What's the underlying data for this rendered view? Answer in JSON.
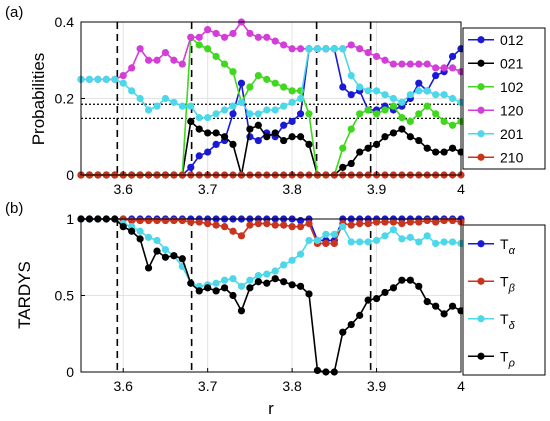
{
  "chart_data": [
    {
      "panel_label": "(a)",
      "type": "line",
      "ylabel": "Probabilities",
      "xlim": [
        3.55,
        4.0
      ],
      "ylim": [
        0,
        0.4
      ],
      "xticks": [
        "3.6",
        "3.7",
        "3.8",
        "3.9",
        "4"
      ],
      "yticks": [
        "0",
        "0.2",
        "0.4"
      ],
      "grid": true,
      "legend_position": "right",
      "dashed_vlines": [
        3.593,
        3.681,
        3.829,
        3.893
      ],
      "dotted_hlines": [
        0.185,
        0.148
      ],
      "x": [
        3.55,
        3.56,
        3.57,
        3.58,
        3.59,
        3.6,
        3.61,
        3.62,
        3.63,
        3.64,
        3.65,
        3.66,
        3.67,
        3.68,
        3.69,
        3.7,
        3.71,
        3.72,
        3.73,
        3.74,
        3.75,
        3.76,
        3.77,
        3.78,
        3.79,
        3.8,
        3.81,
        3.82,
        3.83,
        3.84,
        3.85,
        3.86,
        3.87,
        3.88,
        3.89,
        3.9,
        3.91,
        3.92,
        3.93,
        3.94,
        3.95,
        3.96,
        3.97,
        3.98,
        3.99,
        4.0
      ],
      "series": [
        {
          "name": "012",
          "color": "#1a1ad6",
          "values": [
            0,
            0,
            0,
            0,
            0,
            0,
            0,
            0,
            0,
            0,
            0,
            0,
            0,
            0.02,
            0.05,
            0.06,
            0.08,
            0.09,
            0.16,
            0.24,
            0.1,
            0.09,
            0.11,
            0.1,
            0.13,
            0.14,
            0.16,
            0.33,
            0.33,
            0.33,
            0.33,
            0.23,
            0.21,
            0.22,
            0.17,
            0.17,
            0.18,
            0.17,
            0.18,
            0.2,
            0.24,
            0.22,
            0.26,
            0.27,
            0.31,
            0.33
          ]
        },
        {
          "name": "021",
          "color": "#000000",
          "values": [
            0,
            0,
            0,
            0,
            0,
            0,
            0,
            0,
            0,
            0,
            0,
            0,
            0,
            0.14,
            0.12,
            0.11,
            0.11,
            0.1,
            0.08,
            0.0,
            0.12,
            0.13,
            0.1,
            0.11,
            0.09,
            0.1,
            0.1,
            0.08,
            0.0,
            0.0,
            0.0,
            0.02,
            0.03,
            0.06,
            0.07,
            0.08,
            0.1,
            0.11,
            0.12,
            0.1,
            0.09,
            0.07,
            0.06,
            0.06,
            0.07,
            0.06
          ]
        },
        {
          "name": "102",
          "color": "#3fd81c",
          "values": [
            0,
            0,
            0,
            0,
            0,
            0,
            0,
            0,
            0,
            0,
            0,
            0,
            0,
            0.36,
            0.34,
            0.33,
            0.31,
            0.29,
            0.27,
            0.19,
            0.23,
            0.26,
            0.25,
            0.24,
            0.23,
            0.22,
            0.22,
            0.16,
            0.0,
            0.0,
            0.0,
            0.07,
            0.12,
            0.16,
            0.17,
            0.16,
            0.17,
            0.18,
            0.15,
            0.14,
            0.16,
            0.18,
            0.16,
            0.14,
            0.13,
            0.14
          ]
        },
        {
          "name": "120",
          "color": "#d43ed8",
          "values": [
            0.25,
            0.25,
            0.25,
            0.25,
            0.25,
            0.26,
            0.28,
            0.33,
            0.3,
            0.3,
            0.32,
            0.3,
            0.29,
            0.36,
            0.36,
            0.38,
            0.37,
            0.36,
            0.37,
            0.4,
            0.37,
            0.36,
            0.36,
            0.35,
            0.34,
            0.33,
            0.33,
            0.33,
            0.33,
            0.33,
            0.33,
            0.33,
            0.34,
            0.33,
            0.32,
            0.31,
            0.3,
            0.29,
            0.29,
            0.29,
            0.29,
            0.29,
            0.28,
            0.28,
            0.28,
            0.27
          ]
        },
        {
          "name": "201",
          "color": "#4dd8ea",
          "values": [
            0.25,
            0.25,
            0.25,
            0.25,
            0.25,
            0.24,
            0.22,
            0.2,
            0.17,
            0.18,
            0.2,
            0.19,
            0.18,
            0.18,
            0.15,
            0.15,
            0.16,
            0.17,
            0.18,
            0.19,
            0.16,
            0.16,
            0.17,
            0.17,
            0.18,
            0.19,
            0.2,
            0.33,
            0.33,
            0.33,
            0.33,
            0.33,
            0.26,
            0.23,
            0.22,
            0.22,
            0.21,
            0.2,
            0.19,
            0.21,
            0.22,
            0.22,
            0.21,
            0.21,
            0.2,
            0.19
          ]
        },
        {
          "name": "210",
          "color": "#c8341e",
          "values": [
            0,
            0,
            0,
            0,
            0,
            0,
            0,
            0,
            0,
            0,
            0,
            0,
            0,
            0,
            0,
            0,
            0,
            0,
            0,
            0,
            0,
            0,
            0,
            0,
            0,
            0,
            0,
            0,
            0,
            0,
            0,
            0,
            0,
            0,
            0,
            0,
            0,
            0,
            0,
            0,
            0,
            0,
            0,
            0,
            0,
            0
          ]
        }
      ]
    },
    {
      "panel_label": "(b)",
      "type": "line",
      "ylabel": "TARDYS",
      "xlabel": "r",
      "xlim": [
        3.55,
        4.0
      ],
      "ylim": [
        0,
        1
      ],
      "xticks": [
        "3.6",
        "3.7",
        "3.8",
        "3.9",
        "4"
      ],
      "yticks": [
        "0",
        "0.5",
        "1"
      ],
      "grid": true,
      "legend_position": "right",
      "dashed_vlines": [
        3.593,
        3.681,
        3.893
      ],
      "x": [
        3.55,
        3.56,
        3.57,
        3.58,
        3.59,
        3.6,
        3.61,
        3.62,
        3.63,
        3.64,
        3.65,
        3.66,
        3.67,
        3.68,
        3.69,
        3.7,
        3.71,
        3.72,
        3.73,
        3.74,
        3.75,
        3.76,
        3.77,
        3.78,
        3.79,
        3.8,
        3.81,
        3.82,
        3.83,
        3.84,
        3.85,
        3.86,
        3.87,
        3.88,
        3.89,
        3.9,
        3.91,
        3.92,
        3.93,
        3.94,
        3.95,
        3.96,
        3.97,
        3.98,
        3.99,
        4.0
      ],
      "series": [
        {
          "name": "α",
          "color": "#1a1ad6",
          "values": [
            1,
            1,
            1,
            1,
            1,
            1,
            1,
            1,
            1,
            1,
            1,
            1,
            1,
            1,
            1,
            1,
            1,
            1,
            1,
            1,
            1,
            1,
            1,
            1,
            1,
            1.0,
            0.99,
            1.0,
            0.86,
            0.86,
            0.86,
            1.0,
            1.0,
            1.0,
            1.0,
            1.0,
            1.0,
            1.0,
            1.0,
            1.0,
            1.0,
            1.0,
            1.0,
            1.0,
            1.0,
            1.0
          ]
        },
        {
          "name": "β",
          "color": "#c8341e",
          "values": [
            1,
            1,
            1,
            1,
            1,
            1,
            0.99,
            0.99,
            0.99,
            0.99,
            0.99,
            0.99,
            0.99,
            0.98,
            0.98,
            0.97,
            0.96,
            0.95,
            0.92,
            0.89,
            0.96,
            0.97,
            0.97,
            0.96,
            0.96,
            0.95,
            0.95,
            0.97,
            0.84,
            0.84,
            0.84,
            0.97,
            0.96,
            0.97,
            0.97,
            0.98,
            0.98,
            0.98,
            0.97,
            0.98,
            0.98,
            0.99,
            0.98,
            0.99,
            0.99,
            0.98
          ]
        },
        {
          "name": "δ",
          "color": "#4dd8ea",
          "values": [
            1,
            1,
            1,
            1,
            1,
            0.97,
            0.95,
            0.92,
            0.88,
            0.86,
            0.8,
            0.76,
            0.69,
            0.58,
            0.56,
            0.57,
            0.58,
            0.6,
            0.61,
            0.56,
            0.6,
            0.63,
            0.64,
            0.66,
            0.7,
            0.73,
            0.77,
            0.86,
            0.86,
            0.9,
            0.9,
            0.95,
            0.85,
            0.85,
            0.85,
            0.86,
            0.89,
            0.93,
            0.87,
            0.88,
            0.85,
            0.89,
            0.84,
            0.85,
            0.85,
            0.84
          ]
        },
        {
          "name": "ρ",
          "color": "#000000",
          "values": [
            1,
            1,
            1,
            1,
            1,
            0.95,
            0.92,
            0.87,
            0.68,
            0.79,
            0.75,
            0.76,
            0.74,
            0.58,
            0.53,
            0.55,
            0.53,
            0.55,
            0.5,
            0.4,
            0.55,
            0.59,
            0.58,
            0.61,
            0.59,
            0.57,
            0.56,
            0.51,
            0.01,
            0.0,
            0.0,
            0.26,
            0.31,
            0.37,
            0.47,
            0.48,
            0.52,
            0.55,
            0.6,
            0.6,
            0.56,
            0.46,
            0.43,
            0.38,
            0.43,
            0.4
          ]
        }
      ]
    }
  ]
}
